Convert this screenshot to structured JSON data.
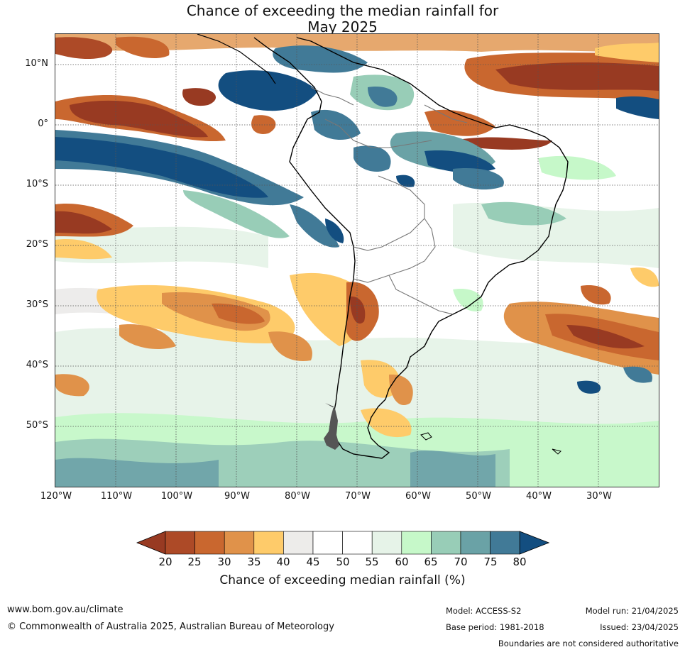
{
  "title": {
    "line1": "Chance of exceeding the median rainfall for",
    "line2": "May 2025"
  },
  "map": {
    "region": "South America and surrounding oceans",
    "lat_labels": [
      "10°N",
      "0°",
      "10°S",
      "20°S",
      "30°S",
      "40°S",
      "50°S"
    ],
    "lon_labels": [
      "120°W",
      "110°W",
      "100°W",
      "90°W",
      "80°W",
      "70°W",
      "60°W",
      "50°W",
      "40°W",
      "30°W"
    ],
    "gridlines": "dotted"
  },
  "colorbar": {
    "ticks": [
      "20",
      "25",
      "30",
      "35",
      "40",
      "45",
      "50",
      "55",
      "60",
      "65",
      "70",
      "75",
      "80"
    ],
    "colors": [
      "#983a22",
      "#ad4a27",
      "#c9672f",
      "#e0924a",
      "#fecb6a",
      "#edecea",
      "#ffffff",
      "#ffffff",
      "#e6f3e8",
      "#c6f8c9",
      "#98cdb7",
      "#6aa2a6",
      "#417a97",
      "#134e80"
    ],
    "label": "Chance of exceeding median rainfall (%)"
  },
  "footer": {
    "website": "www.bom.gov.au/climate",
    "copyright": "© Commonwealth of Australia 2025, Australian Bureau of Meteorology",
    "model": "Model: ACCESS-S2",
    "base_period": "Base period: 1981-2018",
    "model_run": "Model run: 21/04/2025",
    "issued": "Issued: 23/04/2025",
    "disclaimer": "Boundaries are not considered authoritative"
  }
}
